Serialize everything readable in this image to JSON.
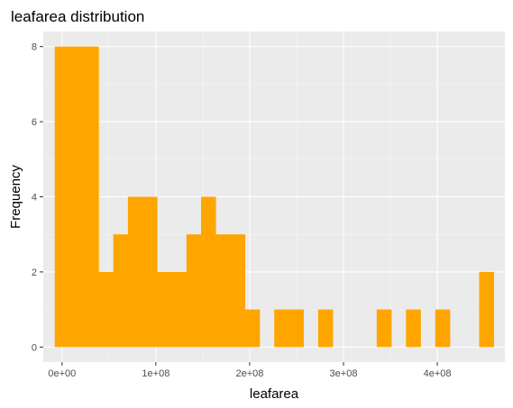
{
  "chart_data": {
    "type": "bar",
    "title": "leafarea distribution",
    "xlabel": "leafarea",
    "ylabel": "Frequency",
    "bin_width": 15600000,
    "bins": [
      {
        "start": -7800000,
        "end": 7800000,
        "count": 8
      },
      {
        "start": 7800000,
        "end": 23400000,
        "count": 8
      },
      {
        "start": 23400000,
        "end": 39000000,
        "count": 8
      },
      {
        "start": 39000000,
        "end": 54600000,
        "count": 2
      },
      {
        "start": 54600000,
        "end": 70200000,
        "count": 3
      },
      {
        "start": 70200000,
        "end": 85800000,
        "count": 4
      },
      {
        "start": 85800000,
        "end": 101400000,
        "count": 4
      },
      {
        "start": 101400000,
        "end": 117000000,
        "count": 2
      },
      {
        "start": 117000000,
        "end": 132600000,
        "count": 2
      },
      {
        "start": 132600000,
        "end": 148200000,
        "count": 3
      },
      {
        "start": 148200000,
        "end": 163800000,
        "count": 4
      },
      {
        "start": 163800000,
        "end": 179400000,
        "count": 3
      },
      {
        "start": 179400000,
        "end": 195000000,
        "count": 3
      },
      {
        "start": 195000000,
        "end": 210600000,
        "count": 1
      },
      {
        "start": 210600000,
        "end": 226200000,
        "count": 0
      },
      {
        "start": 226200000,
        "end": 241800000,
        "count": 1
      },
      {
        "start": 241800000,
        "end": 257400000,
        "count": 1
      },
      {
        "start": 257400000,
        "end": 273000000,
        "count": 0
      },
      {
        "start": 273000000,
        "end": 288600000,
        "count": 1
      },
      {
        "start": 288600000,
        "end": 304200000,
        "count": 0
      },
      {
        "start": 304200000,
        "end": 319800000,
        "count": 0
      },
      {
        "start": 319800000,
        "end": 335400000,
        "count": 0
      },
      {
        "start": 335400000,
        "end": 351000000,
        "count": 1
      },
      {
        "start": 351000000,
        "end": 366600000,
        "count": 0
      },
      {
        "start": 366600000,
        "end": 382200000,
        "count": 1
      },
      {
        "start": 382200000,
        "end": 397800000,
        "count": 0
      },
      {
        "start": 397800000,
        "end": 413400000,
        "count": 1
      },
      {
        "start": 413400000,
        "end": 429000000,
        "count": 0
      },
      {
        "start": 429000000,
        "end": 444600000,
        "count": 0
      },
      {
        "start": 444600000,
        "end": 460200000,
        "count": 2
      }
    ],
    "xlim": [
      -20000000,
      472000000
    ],
    "ylim": [
      -0.4,
      8.4
    ],
    "x_ticks": [
      {
        "value": 0,
        "label": "0e+00"
      },
      {
        "value": 100000000,
        "label": "1e+08"
      },
      {
        "value": 200000000,
        "label": "2e+08"
      },
      {
        "value": 300000000,
        "label": "3e+08"
      },
      {
        "value": 400000000,
        "label": "4e+08"
      }
    ],
    "y_ticks": [
      {
        "value": 0,
        "label": "0"
      },
      {
        "value": 2,
        "label": "2"
      },
      {
        "value": 4,
        "label": "4"
      },
      {
        "value": 6,
        "label": "6"
      },
      {
        "value": 8,
        "label": "8"
      }
    ],
    "grid": true,
    "colors": {
      "bar": "#FFA500",
      "panel": "#EBEBEB",
      "grid_major": "#FFFFFF",
      "grid_minor": "#F5F5F5",
      "tick_text": "#4D4D4D",
      "tick_mark": "#333333"
    }
  }
}
